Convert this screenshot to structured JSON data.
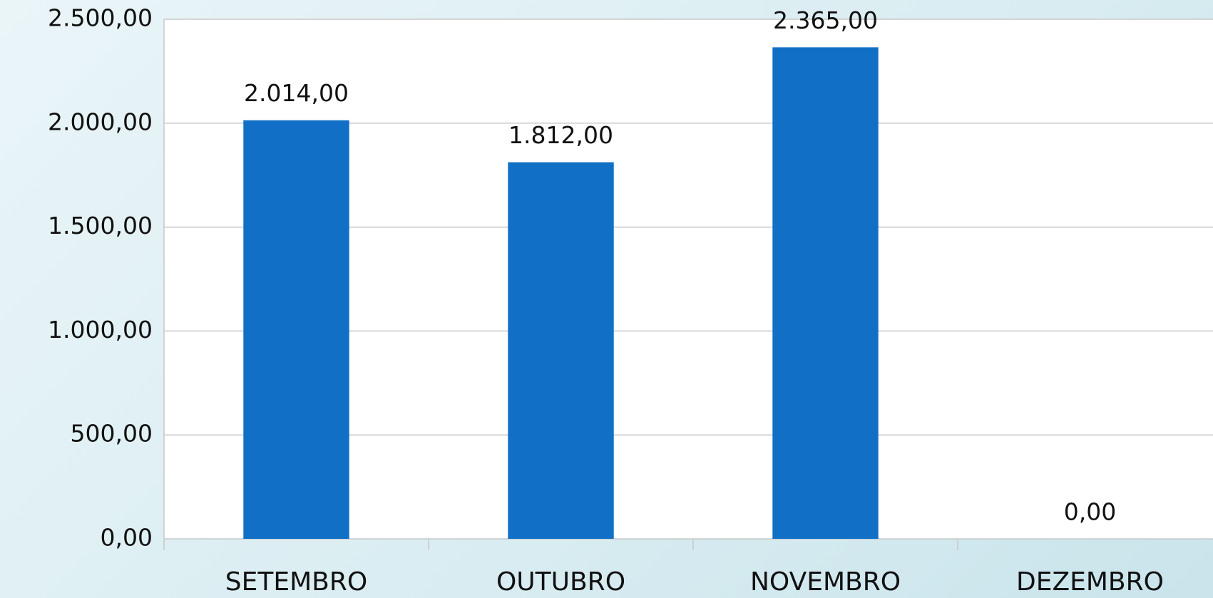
{
  "chart_data": {
    "type": "bar",
    "categories": [
      "SETEMBRO",
      "OUTUBRO",
      "NOVEMBRO",
      "DEZEMBRO"
    ],
    "values": [
      2014,
      1812,
      2365,
      0
    ],
    "value_labels": [
      "2.014,00",
      "1.812,00",
      "2.365,00",
      "0,00"
    ],
    "color": "#1170c6",
    "ylim": [
      0,
      2500
    ],
    "yticks": [
      {
        "value": 0,
        "label": "0,00"
      },
      {
        "value": 500,
        "label": "500,00"
      },
      {
        "value": 1000,
        "label": "1.000,00"
      },
      {
        "value": 1500,
        "label": "1.500,00"
      },
      {
        "value": 2000,
        "label": "2.000,00"
      },
      {
        "value": 2500,
        "label": "2.500,00"
      }
    ],
    "grid": true
  }
}
